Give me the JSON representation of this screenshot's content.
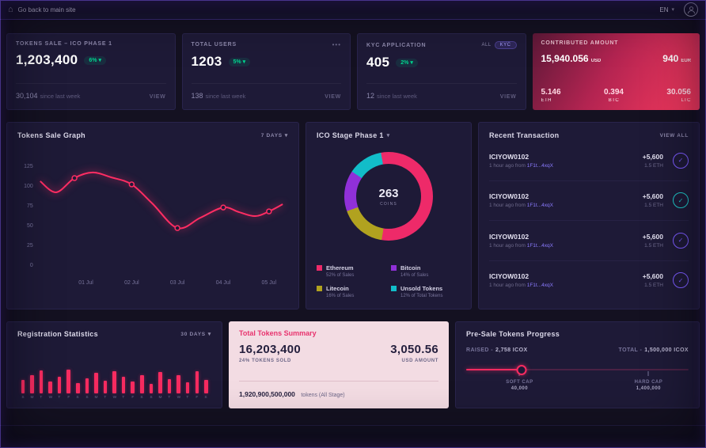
{
  "topbar": {
    "back_label": "Go back to main site",
    "lang": "EN"
  },
  "icons": {
    "home": "⌂",
    "caret_down": "▾",
    "dots": "•••",
    "check": "✓"
  },
  "stat_cards": [
    {
      "title": "TOKENS SALE – ICO PHASE 1",
      "value": "1,203,400",
      "badge": "6%",
      "sub_value": "30,104",
      "sub_label": "since last week",
      "action": "VIEW"
    },
    {
      "title": "TOTAL USERS",
      "value": "1203",
      "badge": "5%",
      "sub_value": "138",
      "sub_label": "since last week",
      "action": "VIEW"
    },
    {
      "title": "KYC APPLICATION",
      "value": "405",
      "badge": "2%",
      "sub_value": "12",
      "sub_label": "since last week",
      "action": "VIEW",
      "tab_all": "ALL",
      "tab_kyc": "KYC"
    }
  ],
  "contributed": {
    "title": "CONTRIBUTED AMOUNT",
    "usd_value": "15,940.056",
    "usd_unit": "USD",
    "eur_value": "940",
    "eur_unit": "EUR",
    "coins": [
      {
        "value": "5.146",
        "unit": "ETH"
      },
      {
        "value": "0.394",
        "unit": "BTC"
      },
      {
        "value": "30.056",
        "unit": "LTC"
      }
    ]
  },
  "tokens_graph": {
    "title": "Tokens Sale Graph",
    "range": "7 DAYS"
  },
  "ico_stage": {
    "title": "ICO Stage Phase 1"
  },
  "transactions": {
    "title": "Recent Transaction",
    "action": "VIEW ALL",
    "items": [
      {
        "id": "ICIYOW0102",
        "meta_prefix": "1 hour ago from",
        "meta_hash": "1F1t...4xqX",
        "amount": "+5,600",
        "eth": "1.5 ETH",
        "icon_color": "#7c5cff"
      },
      {
        "id": "ICIYOW0102",
        "meta_prefix": "1 hour ago from",
        "meta_hash": "1F1t...4xqX",
        "amount": "+5,600",
        "eth": "1.5 ETH",
        "icon_color": "#1fc8c8"
      },
      {
        "id": "ICIYOW0102",
        "meta_prefix": "1 hour ago from",
        "meta_hash": "1F1t...4xqX",
        "amount": "+5,600",
        "eth": "1.5 ETH",
        "icon_color": "#7c5cff"
      },
      {
        "id": "ICIYOW0102",
        "meta_prefix": "1 hour ago from",
        "meta_hash": "1F1t...4xqX",
        "amount": "+5,600",
        "eth": "1.5 ETH",
        "icon_color": "#7c5cff"
      }
    ]
  },
  "registration": {
    "title": "Registration Statistics",
    "range": "30 DAYS"
  },
  "summary": {
    "title": "Total Tokens Summary",
    "tokens": "16,203,400",
    "tokens_sub": "24% TOKENS SOLD",
    "usd": "3,050.56",
    "usd_sub": "USD AMOUNT",
    "total": "1,920,900,500,000",
    "total_sub": "tokens (All Stage)"
  },
  "presale": {
    "title": "Pre-Sale Tokens Progress",
    "raised_label": "RAISED -",
    "raised_value": "2,758 ICOX",
    "total_label": "TOTAL -",
    "total_value": "1,500,000 ICOX",
    "soft_cap_label": "SOFT CAP",
    "soft_cap_value": "40,000",
    "hard_cap_label": "HARD CAP",
    "hard_cap_value": "1,400,000",
    "progress_pct": 25,
    "soft_pos_pct": 24,
    "hard_pos_pct": 82
  },
  "chart_data": [
    {
      "id": "tokens-sale-line",
      "type": "line",
      "title": "Tokens Sale Graph",
      "color": "#ff2d63",
      "ylim": [
        0,
        135
      ],
      "y_ticks": [
        0,
        25,
        50,
        75,
        100,
        125
      ],
      "xlim": [
        0,
        5.3
      ],
      "categories": [
        "01 Jul",
        "02 Jul",
        "03 Jul",
        "04 Jul",
        "05 Jul"
      ],
      "category_x": [
        1,
        2,
        3,
        4,
        5
      ],
      "points": [
        [
          0,
          106
        ],
        [
          0.35,
          92
        ],
        [
          0.75,
          110
        ],
        [
          1.15,
          117
        ],
        [
          1.55,
          111
        ],
        [
          2,
          102
        ],
        [
          2.45,
          78
        ],
        [
          3,
          47
        ],
        [
          3.5,
          60
        ],
        [
          4,
          73
        ],
        [
          4.35,
          67
        ],
        [
          4.7,
          62
        ],
        [
          5,
          68
        ],
        [
          5.3,
          77
        ]
      ],
      "markers": [
        [
          0.75,
          110
        ],
        [
          2,
          102
        ],
        [
          3,
          47
        ],
        [
          4,
          73
        ],
        [
          5,
          68
        ]
      ]
    },
    {
      "id": "ico-stage-donut",
      "type": "pie",
      "center_value": "263",
      "center_label": "COINS",
      "start_angle": -10,
      "draw_order": [
        0,
        2,
        1,
        3
      ],
      "slices": [
        {
          "label": "Ethereum",
          "value": 52,
          "sub": "52% of Sales",
          "color": "#ee2a69"
        },
        {
          "label": "Bitcoin",
          "value": 14,
          "sub": "14% of Sales",
          "color": "#9030d8"
        },
        {
          "label": "Litecoin",
          "value": 16,
          "sub": "16% of Sales",
          "color": "#b1a21f"
        },
        {
          "label": "Unsold Tokens",
          "value": 12,
          "sub": "12% of Total Tokens",
          "color": "#12bdc9"
        }
      ]
    },
    {
      "id": "registration-bars",
      "type": "bar",
      "title": "Registration Statistics",
      "color": "#f72b60",
      "ymax": 30,
      "labels": [
        "S",
        "M",
        "T",
        "W",
        "T",
        "F",
        "S",
        "S",
        "M",
        "T",
        "W",
        "T",
        "F",
        "S",
        "S",
        "M",
        "T",
        "W",
        "T",
        "F",
        "S"
      ],
      "values": [
        16,
        22,
        27,
        14,
        20,
        28,
        12,
        18,
        24,
        15,
        26,
        20,
        14,
        22,
        11,
        25,
        17,
        22,
        13,
        26,
        16
      ]
    }
  ]
}
